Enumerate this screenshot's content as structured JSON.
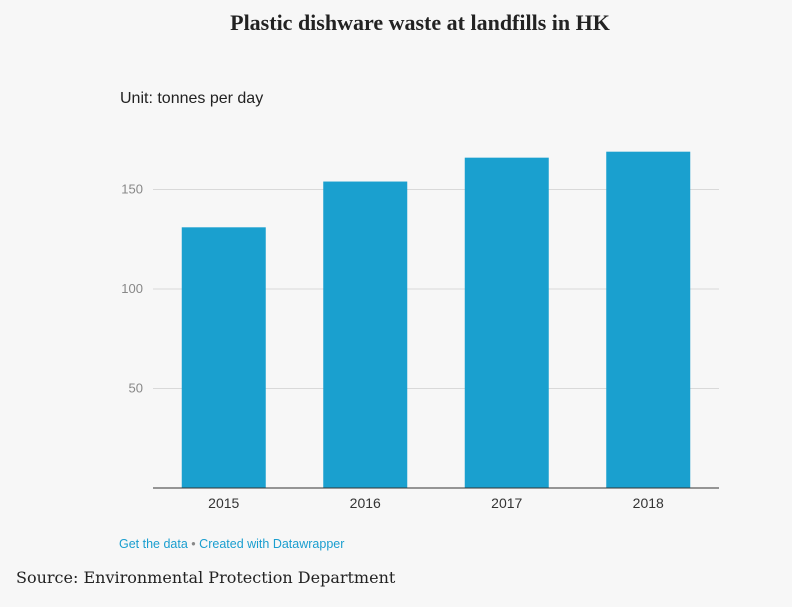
{
  "header": {
    "title": "Plastic dishware waste at landfills in HK",
    "unit": "Unit: tonnes per day"
  },
  "footer": {
    "get_data": "Get the data",
    "separator": "•",
    "created_with": "Created with Datawrapper"
  },
  "source": "Source: Environmental Protection Department",
  "colors": {
    "bar": "#1aa0cf",
    "grid": "#d9d9d9",
    "axis": "#333333",
    "link": "#1a9ecf"
  },
  "chart_data": {
    "type": "bar",
    "title": "Plastic dishware waste at landfills in HK",
    "ylabel": "Unit: tonnes per day",
    "categories": [
      "2015",
      "2016",
      "2017",
      "2018"
    ],
    "values": [
      131,
      154,
      166,
      169
    ],
    "yticks": [
      50,
      100,
      150
    ],
    "ylim": [
      0,
      175
    ],
    "grid": true
  }
}
